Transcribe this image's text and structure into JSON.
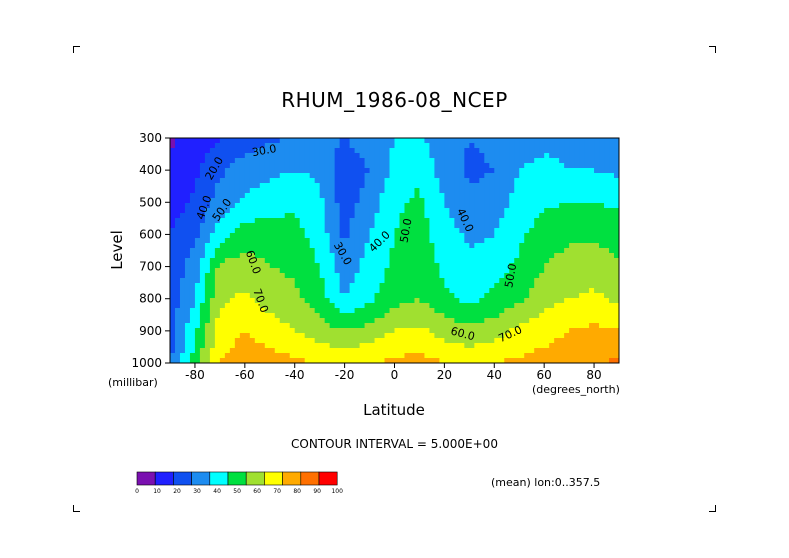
{
  "chart_data": {
    "type": "heatmap",
    "title": "RHUM_1986-08_NCEP",
    "xlabel": "Latitude",
    "ylabel": "Level",
    "x_unit": "(degrees_north)",
    "y_unit": "(millibar)",
    "xlim": [
      -90,
      90
    ],
    "ylim": [
      1000,
      300
    ],
    "x_ticks": [
      -80,
      -60,
      -40,
      -20,
      0,
      20,
      40,
      60,
      80
    ],
    "x_tick_labels": [
      "-80",
      "-60",
      "-40",
      "-20",
      "0",
      "20",
      "40",
      "60",
      "80"
    ],
    "y_ticks": [
      300,
      400,
      500,
      600,
      700,
      800,
      900,
      1000
    ],
    "y_tick_labels": [
      "300",
      "400",
      "500",
      "600",
      "700",
      "800",
      "900",
      "1000"
    ],
    "contour_interval_text": "CONTOUR INTERVAL = 5.000E+00",
    "averaging_text": "(mean) lon:0..357.5",
    "levels": [
      300,
      400,
      500,
      600,
      700,
      800,
      900,
      1000
    ],
    "latitudes": [
      -90,
      -80,
      -70,
      -60,
      -50,
      -40,
      -30,
      -20,
      -10,
      0,
      10,
      20,
      30,
      40,
      50,
      60,
      70,
      80,
      90
    ],
    "values": [
      [
        8,
        14,
        20,
        25,
        28,
        31,
        34,
        30,
        36,
        40,
        42,
        34,
        30,
        32,
        36,
        38,
        38,
        38,
        36
      ],
      [
        12,
        18,
        28,
        35,
        38,
        40,
        38,
        22,
        30,
        42,
        48,
        35,
        28,
        30,
        40,
        42,
        40,
        40,
        38
      ],
      [
        15,
        22,
        35,
        42,
        45,
        48,
        42,
        25,
        35,
        48,
        52,
        40,
        32,
        34,
        44,
        48,
        50,
        50,
        48
      ],
      [
        20,
        28,
        45,
        55,
        55,
        54,
        45,
        28,
        40,
        50,
        54,
        45,
        38,
        40,
        48,
        55,
        58,
        58,
        55
      ],
      [
        22,
        35,
        62,
        65,
        60,
        58,
        50,
        34,
        44,
        52,
        56,
        48,
        42,
        46,
        52,
        60,
        64,
        65,
        62
      ],
      [
        24,
        40,
        68,
        72,
        66,
        62,
        55,
        40,
        48,
        56,
        60,
        52,
        48,
        52,
        58,
        66,
        70,
        72,
        68
      ],
      [
        26,
        48,
        75,
        80,
        75,
        70,
        64,
        60,
        64,
        70,
        72,
        66,
        62,
        66,
        72,
        76,
        80,
        82,
        80
      ],
      [
        28,
        55,
        80,
        85,
        85,
        82,
        80,
        78,
        80,
        82,
        84,
        80,
        78,
        80,
        82,
        84,
        86,
        88,
        92
      ]
    ],
    "contour_labels": [
      {
        "text": "30.0",
        "lat": -52,
        "lev": 350,
        "rot": -10
      },
      {
        "text": "20.0",
        "lat": -71,
        "lev": 400,
        "rot": -60
      },
      {
        "text": "40.0",
        "lat": -75,
        "lev": 520,
        "rot": -70
      },
      {
        "text": "50.0",
        "lat": -68,
        "lev": 530,
        "rot": -55
      },
      {
        "text": "60.0",
        "lat": -58,
        "lev": 690,
        "rot": 70
      },
      {
        "text": "70.0",
        "lat": -55,
        "lev": 810,
        "rot": 70
      },
      {
        "text": "30.0",
        "lat": -22,
        "lev": 665,
        "rot": 60
      },
      {
        "text": "40.0",
        "lat": -5,
        "lev": 630,
        "rot": -45
      },
      {
        "text": "50.0",
        "lat": 6,
        "lev": 590,
        "rot": -80
      },
      {
        "text": "40.0",
        "lat": 27,
        "lev": 560,
        "rot": 65
      },
      {
        "text": "50.0",
        "lat": 48,
        "lev": 730,
        "rot": -80
      },
      {
        "text": "60.0",
        "lat": 27,
        "lev": 920,
        "rot": 15
      },
      {
        "text": "70.0",
        "lat": 47,
        "lev": 920,
        "rot": -25
      }
    ],
    "colorbar": {
      "colors": [
        "#7a10b0",
        "#2020ff",
        "#1050f0",
        "#1d8cf0",
        "#00ffff",
        "#00e040",
        "#a0e030",
        "#ffff00",
        "#ffaa00",
        "#ff7000",
        "#ff0000"
      ],
      "labels": [
        "0",
        "10",
        "20",
        "30",
        "40",
        "50",
        "60",
        "70",
        "80",
        "90",
        "100"
      ]
    }
  }
}
